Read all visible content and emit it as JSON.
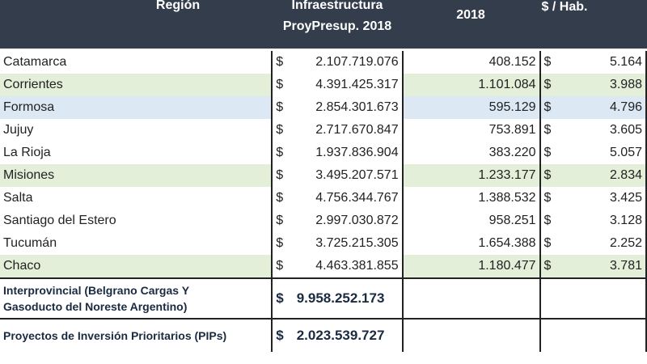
{
  "header": {
    "region": "Región",
    "infra_line1": "Infraestructura",
    "infra_line2": "ProyPresup. 2018",
    "pop": "2018",
    "per_hab": "$ / Hab."
  },
  "currency": "$",
  "rows": [
    {
      "region": "Catamarca",
      "infra": "2.107.719.076",
      "pop": "408.152",
      "per": "5.164",
      "bg": ""
    },
    {
      "region": "Corrientes",
      "infra": "4.391.425.317",
      "pop": "1.101.084",
      "per": "3.988",
      "bg": "green"
    },
    {
      "region": "Formosa",
      "infra": "2.854.301.673",
      "pop": "595.129",
      "per": "4.796",
      "bg": "blue"
    },
    {
      "region": "Jujuy",
      "infra": "2.717.670.847",
      "pop": "753.891",
      "per": "3.605",
      "bg": ""
    },
    {
      "region": "La Rioja",
      "infra": "1.937.836.904",
      "pop": "383.220",
      "per": "5.057",
      "bg": ""
    },
    {
      "region": "Misiones",
      "infra": "3.495.207.571",
      "pop": "1.233.177",
      "per": "2.834",
      "bg": "green"
    },
    {
      "region": "Salta",
      "infra": "4.756.344.767",
      "pop": "1.388.532",
      "per": "3.425",
      "bg": ""
    },
    {
      "region": "Santiago del Estero",
      "infra": "2.997.030.872",
      "pop": "958.251",
      "per": "3.128",
      "bg": ""
    },
    {
      "region": "Tucumán",
      "infra": "3.725.215.305",
      "pop": "1.654.388",
      "per": "2.252",
      "bg": ""
    },
    {
      "region": "Chaco",
      "infra": "4.463.381.855",
      "pop": "1.180.477",
      "per": "3.781",
      "bg": "green"
    }
  ],
  "extra": [
    {
      "region_l1": "Interprovincial (Belgrano Cargas  Y",
      "region_l2": "Gasoducto del Noreste Argentino)",
      "infra": "9.958.252.173"
    },
    {
      "region_l1": "Proyectos de Inversión Prioritarios (PIPs)",
      "region_l2": "",
      "infra": "2.023.539.727"
    }
  ]
}
